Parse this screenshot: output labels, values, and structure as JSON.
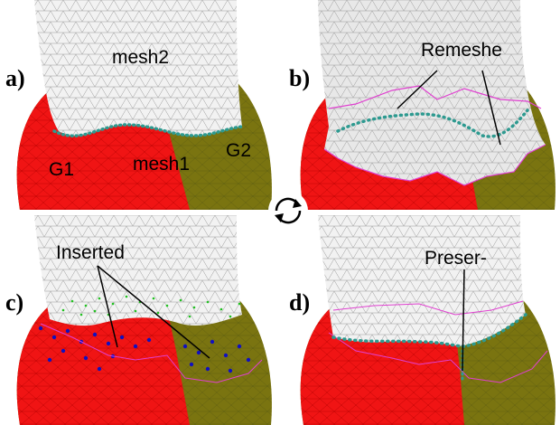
{
  "panels": [
    {
      "label": "a)",
      "annotations": {
        "mesh2": "mesh2",
        "mesh1": "mesh1",
        "g1": "G1",
        "g2": "G2"
      }
    },
    {
      "label": "b)",
      "annotation": "Remeshe"
    },
    {
      "label": "c)",
      "annotation": "Inserted"
    },
    {
      "label": "d)",
      "annotation": "Preser-"
    }
  ],
  "colors": {
    "red_region": "#f01414",
    "olive_region": "#7a7410",
    "white_mesh": "#f2f2f2",
    "boundary_dots": "#2e9a90",
    "magenta_outline": "#e040d0",
    "inserted_green": "#20c020",
    "inserted_blue": "#1010c0"
  },
  "icons": {
    "cycle": "rotate-cycle-icon"
  }
}
